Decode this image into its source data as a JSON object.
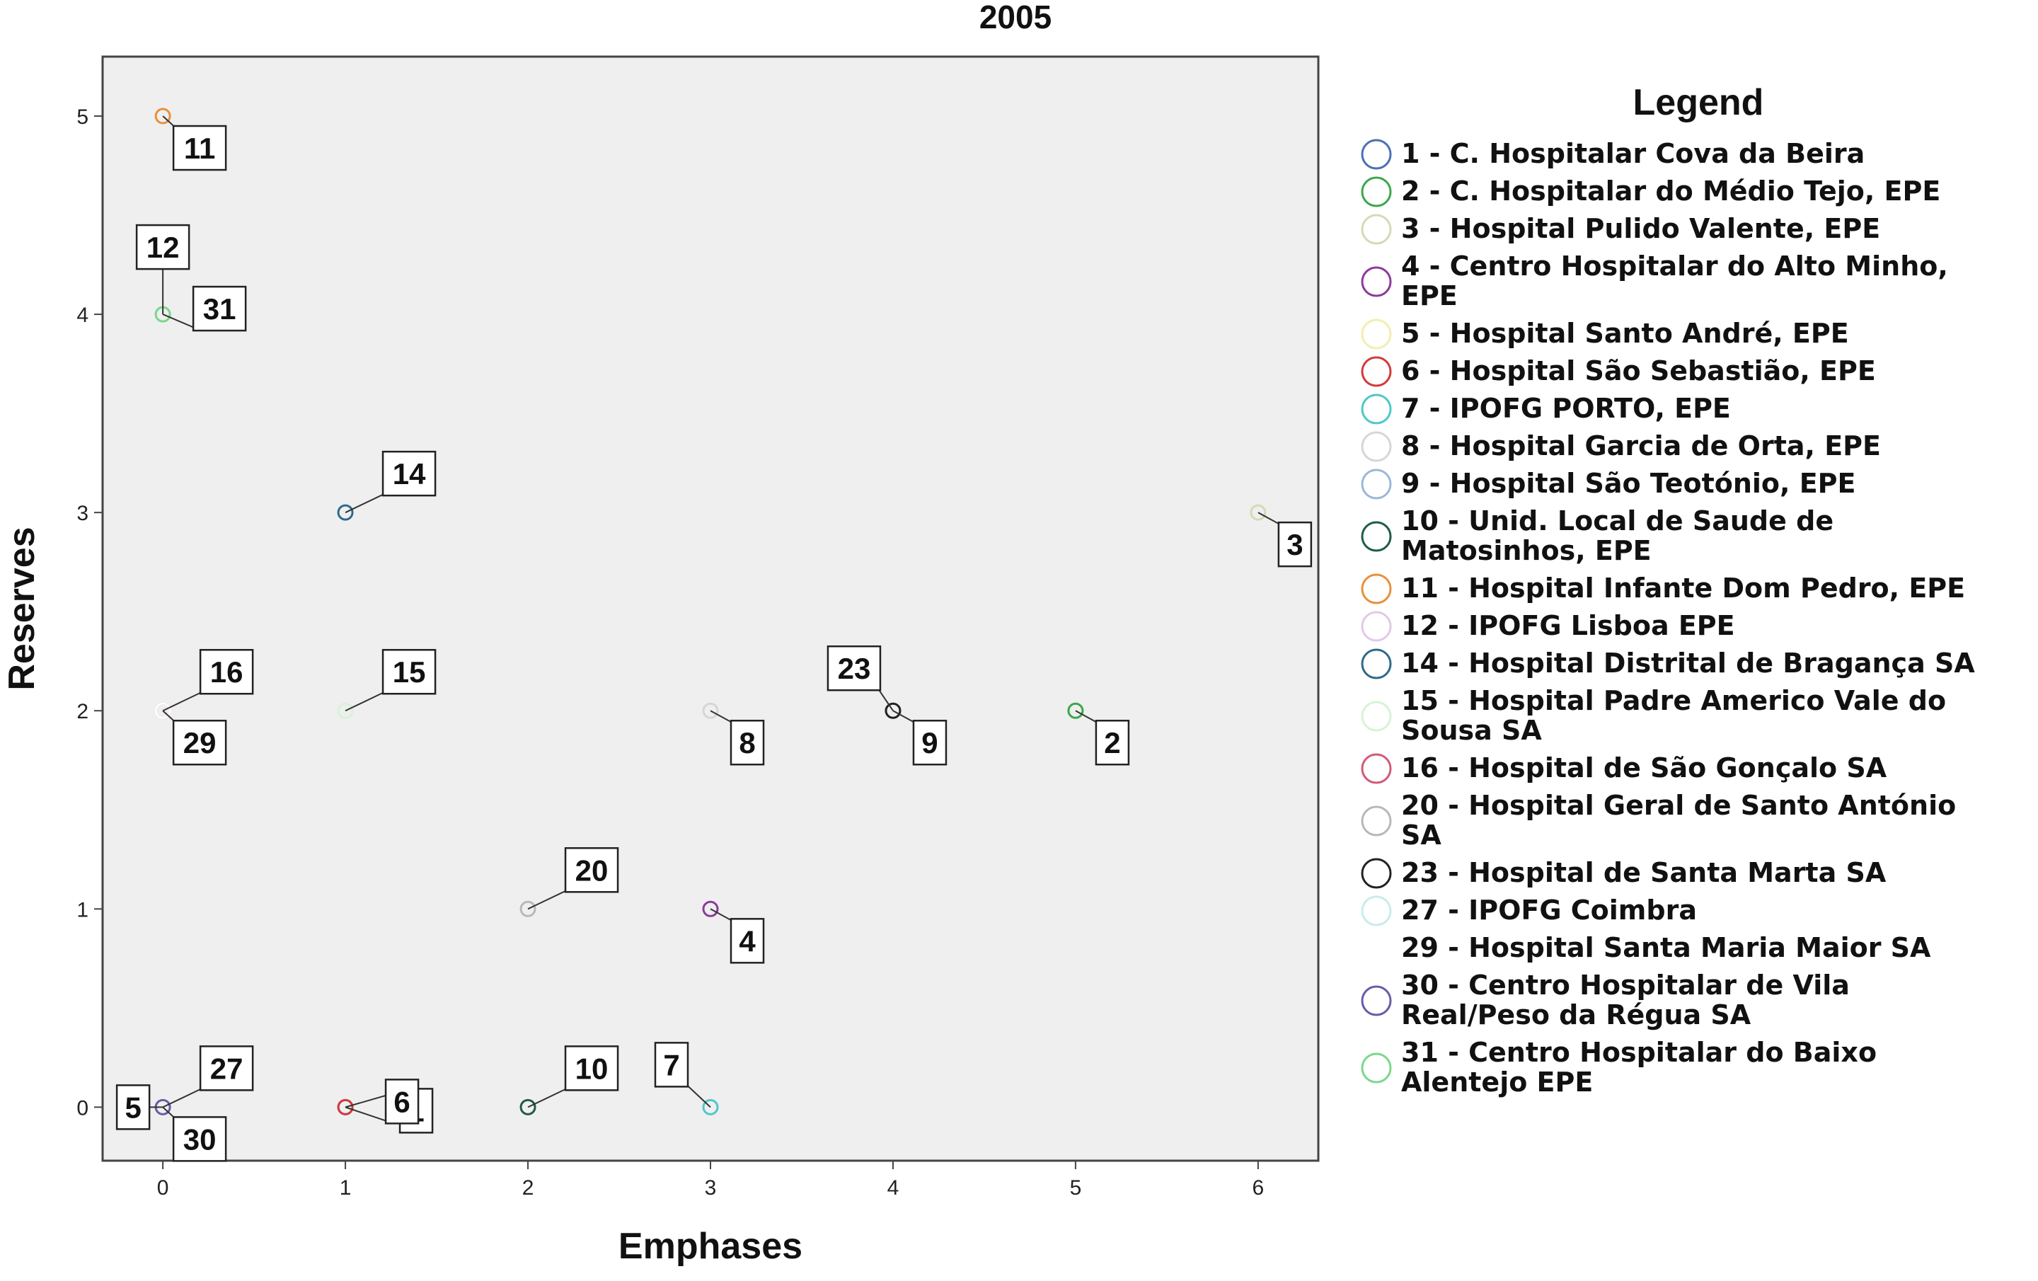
{
  "chart_data": {
    "type": "scatter",
    "title": "2005",
    "xlabel": "Emphases",
    "ylabel": "Reserves",
    "xlim": [
      -0.33,
      6.33
    ],
    "ylim": [
      -0.27,
      5.3
    ],
    "xticks": [
      "0",
      "1",
      "2",
      "3",
      "4",
      "5",
      "6"
    ],
    "yticks": [
      "0",
      "1",
      "2",
      "3",
      "4",
      "5"
    ],
    "grid": false,
    "legend_title": "Legend",
    "legend_position": "right",
    "points": [
      {
        "id": "1",
        "x": 1,
        "y": 0,
        "label_dir": "right-down",
        "color": "#4a6fb5"
      },
      {
        "id": "2",
        "x": 5,
        "y": 2,
        "label_dir": "down-right",
        "color": "#3aa84a"
      },
      {
        "id": "3",
        "x": 6,
        "y": 3,
        "label_dir": "down-right",
        "color": "#d8d8b8"
      },
      {
        "id": "4",
        "x": 3,
        "y": 1,
        "label_dir": "down-right",
        "color": "#8c3a9c"
      },
      {
        "id": "5",
        "x": 0,
        "y": 0,
        "label_dir": "left",
        "color": "#f2eeb0"
      },
      {
        "id": "6",
        "x": 1,
        "y": 0,
        "label_dir": "right",
        "color": "#d23a3a"
      },
      {
        "id": "7",
        "x": 3,
        "y": 0,
        "label_dir": "up-left",
        "color": "#4ec8c8"
      },
      {
        "id": "8",
        "x": 3,
        "y": 2,
        "label_dir": "down-right",
        "color": "#d6d6d6"
      },
      {
        "id": "9",
        "x": 4,
        "y": 2,
        "label_dir": "down-right",
        "color": "#9ab8d8"
      },
      {
        "id": "10",
        "x": 2,
        "y": 0,
        "label_dir": "up-right",
        "color": "#1e5a4a"
      },
      {
        "id": "11",
        "x": 0,
        "y": 5,
        "label_dir": "down-right",
        "color": "#e8903a"
      },
      {
        "id": "12",
        "x": 0,
        "y": 4,
        "label_dir": "up",
        "color": "#e2c8e8"
      },
      {
        "id": "14",
        "x": 1,
        "y": 3,
        "label_dir": "up-right",
        "color": "#2e6a8a"
      },
      {
        "id": "15",
        "x": 1,
        "y": 2,
        "label_dir": "up-right",
        "color": "#d8f2d8"
      },
      {
        "id": "16",
        "x": 0,
        "y": 2,
        "label_dir": "up-right",
        "color": "#d25a7a"
      },
      {
        "id": "20",
        "x": 2,
        "y": 1,
        "label_dir": "up-right",
        "color": "#b8b8b8"
      },
      {
        "id": "23",
        "x": 4,
        "y": 2,
        "label_dir": "up-left",
        "color": "#222222"
      },
      {
        "id": "27",
        "x": 0,
        "y": 0,
        "label_dir": "up-right",
        "color": "#c8ecec"
      },
      {
        "id": "29",
        "x": 0,
        "y": 2,
        "label_dir": "down-right",
        "color": "#ffffff"
      },
      {
        "id": "30",
        "x": 0,
        "y": 0,
        "label_dir": "down-right",
        "color": "#6a5aa8"
      },
      {
        "id": "31",
        "x": 0,
        "y": 4,
        "label_dir": "right",
        "color": "#7ad88a"
      }
    ],
    "legend": [
      {
        "color": "#4a6fb5",
        "lines": [
          "1 - C. Hospitalar Cova da Beira"
        ]
      },
      {
        "color": "#3aa84a",
        "lines": [
          "2 - C. Hospitalar do Médio Tejo, EPE"
        ]
      },
      {
        "color": "#d8d8b8",
        "lines": [
          "3 - Hospital Pulido Valente, EPE"
        ]
      },
      {
        "color": "#8c3a9c",
        "lines": [
          "4 - Centro Hospitalar do Alto Minho,",
          "EPE"
        ]
      },
      {
        "color": "#f2eeb0",
        "lines": [
          "5 - Hospital Santo André, EPE"
        ]
      },
      {
        "color": "#d23a3a",
        "lines": [
          "6 - Hospital São Sebastião, EPE"
        ]
      },
      {
        "color": "#4ec8c8",
        "lines": [
          "7 - IPOFG PORTO, EPE"
        ]
      },
      {
        "color": "#d6d6d6",
        "lines": [
          "8 - Hospital Garcia  de Orta, EPE"
        ]
      },
      {
        "color": "#9ab8d8",
        "lines": [
          "9 - Hospital São Teotónio, EPE"
        ]
      },
      {
        "color": "#1e5a4a",
        "lines": [
          "10 - Unid. Local de Saude de",
          "Matosinhos, EPE"
        ]
      },
      {
        "color": "#e8903a",
        "lines": [
          "11 - Hospital Infante Dom Pedro, EPE"
        ]
      },
      {
        "color": "#e2c8e8",
        "lines": [
          "12 - IPOFG Lisboa EPE"
        ]
      },
      {
        "color": "#2e6a8a",
        "lines": [
          "14 - Hospital Distrital de Bragança SA"
        ]
      },
      {
        "color": "#d8f2d8",
        "lines": [
          "15 - Hospital Padre Americo  Vale do",
          "Sousa SA"
        ]
      },
      {
        "color": "#d25a7a",
        "lines": [
          "16 - Hospital de São Gonçalo SA"
        ]
      },
      {
        "color": "#b8b8b8",
        "lines": [
          "20 - Hospital Geral de Santo António",
          "SA"
        ]
      },
      {
        "color": "#222222",
        "lines": [
          "23 - Hospital de Santa Marta SA"
        ]
      },
      {
        "color": "#c8ecec",
        "lines": [
          "27 - IPOFG Coimbra"
        ]
      },
      {
        "color": "#ffffff",
        "lines": [
          "29 - Hospital Santa Maria Maior SA"
        ]
      },
      {
        "color": "#6a5aa8",
        "lines": [
          "30 - Centro Hospitalar de Vila",
          "Real/Peso da Régua SA"
        ]
      },
      {
        "color": "#7ad88a",
        "lines": [
          "31 - Centro Hospitalar do Baixo",
          "Alentejo EPE"
        ]
      }
    ]
  }
}
